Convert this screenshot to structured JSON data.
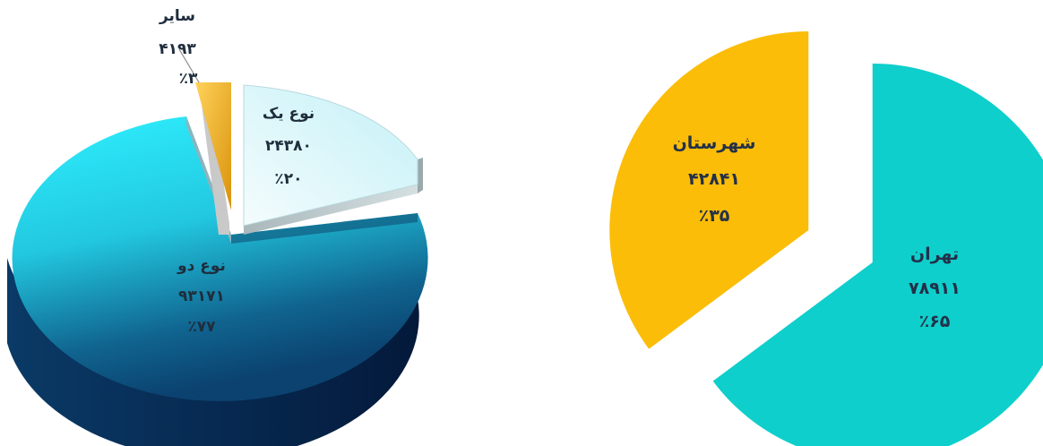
{
  "chart_data": [
    {
      "type": "pie",
      "title": "",
      "three_d": true,
      "exploded": true,
      "slices": [
        {
          "label": "نوع یک",
          "value": 24380,
          "value_text": "۲۴۳۸۰",
          "percent": 20,
          "percent_text": "٪۲۰",
          "color": "#dff7fb"
        },
        {
          "label": "نوع دو",
          "value": 93171,
          "value_text": "۹۳۱۷۱",
          "percent": 77,
          "percent_text": "٪۷۷",
          "color": "#22d3ea"
        },
        {
          "label": "سایر",
          "value": 4193,
          "value_text": "۴۱۹۳",
          "percent": 3,
          "percent_text": "٪۳",
          "color": "#f2b21e"
        }
      ]
    },
    {
      "type": "pie",
      "title": "",
      "exploded": true,
      "slices": [
        {
          "label": "تهران",
          "value": 78911,
          "value_text": "۷۸۹۱۱",
          "percent": 65,
          "percent_text": "٪۶۵",
          "color": "#0ecfcb"
        },
        {
          "label": "شهرستان",
          "value": 42841,
          "value_text": "۴۲۸۴۱",
          "percent": 35,
          "percent_text": "٪۳۵",
          "color": "#fbbd08"
        }
      ]
    }
  ]
}
